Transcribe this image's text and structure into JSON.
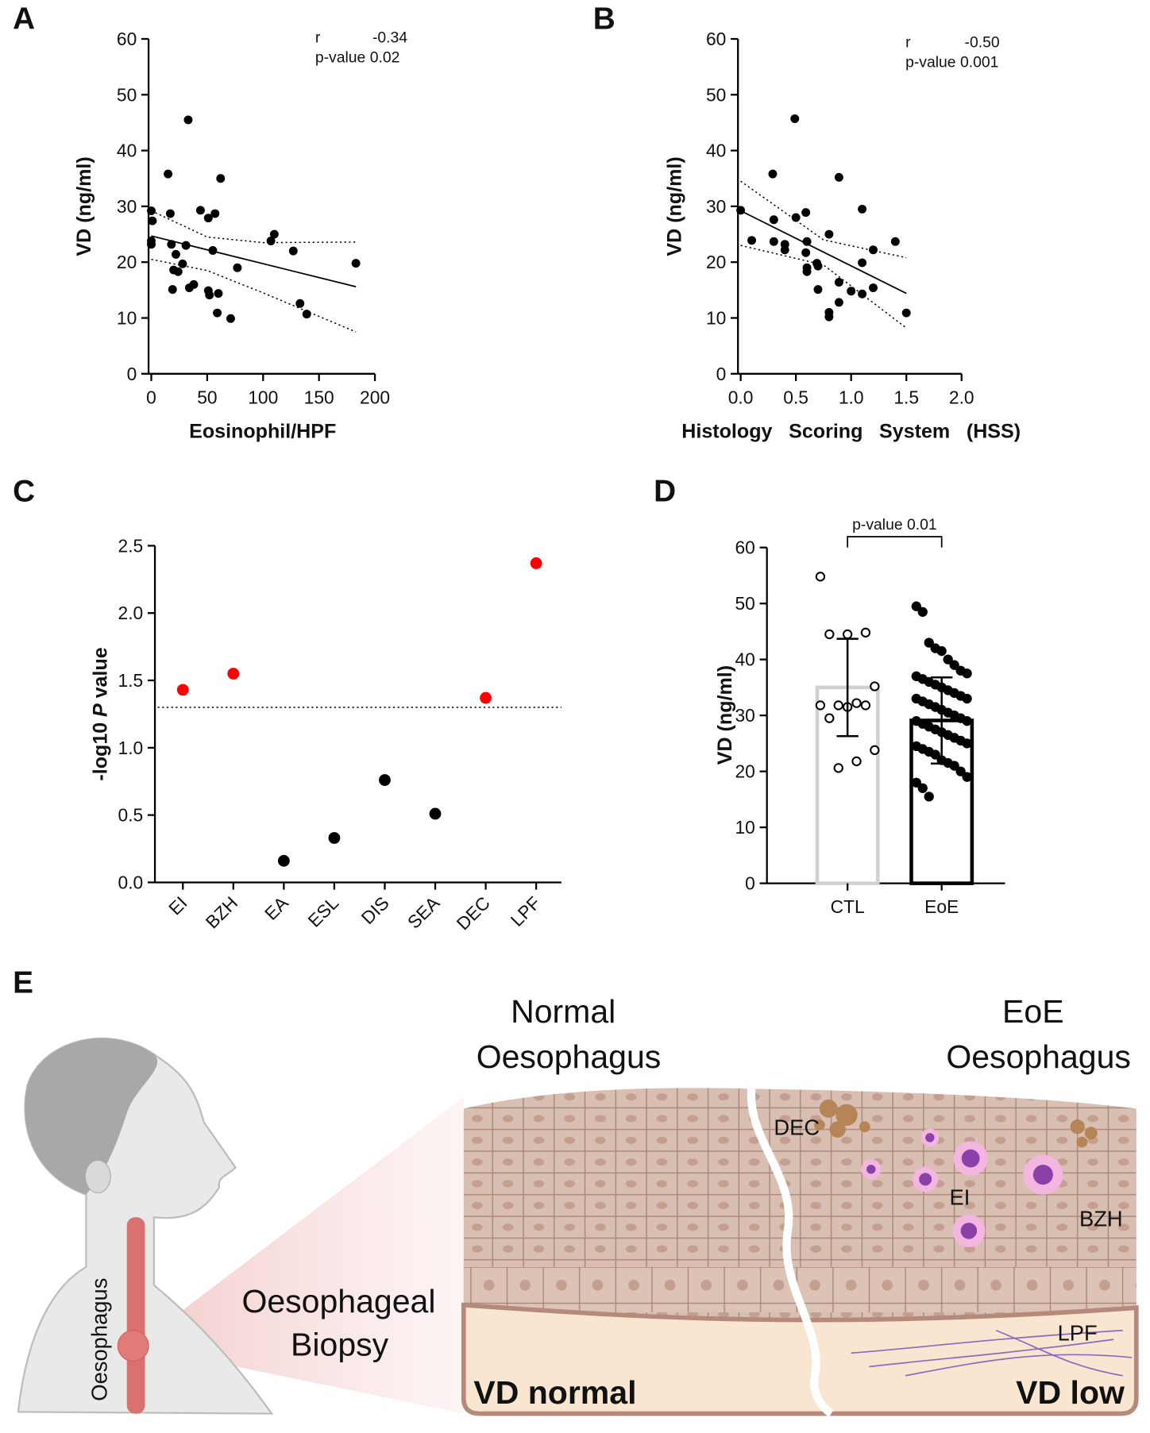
{
  "chart_data": [
    {
      "panel": "A",
      "type": "scatter",
      "x_label": "Eosinophil/HPF",
      "y_label": "VD (ng/ml)",
      "annotations": [
        "r",
        "-0.34",
        "p-value 0.02"
      ],
      "xlim": [
        0,
        200
      ],
      "xticks": [
        0,
        50,
        100,
        150,
        200
      ],
      "ylim": [
        0,
        60
      ],
      "yticks": [
        0,
        10,
        20,
        30,
        40,
        50,
        60
      ],
      "series": [
        {
          "color": "#000000",
          "x": [
            0,
            1,
            0,
            0,
            33,
            15,
            17,
            18,
            22,
            20,
            24,
            19,
            28,
            31,
            34,
            38,
            44,
            51,
            57,
            55,
            51,
            52,
            60,
            59,
            62,
            71,
            77,
            107,
            110,
            127,
            133,
            139,
            183
          ],
          "values": [
            29.2,
            27.4,
            23.8,
            23.2,
            45.5,
            35.8,
            28.7,
            23.2,
            21.4,
            18.6,
            18.3,
            15.1,
            19.7,
            23.0,
            15.4,
            16.0,
            29.3,
            27.9,
            28.7,
            22.1,
            14.9,
            14.1,
            14.4,
            10.9,
            35.0,
            9.9,
            19.0,
            23.8,
            25.0,
            22.0,
            12.6,
            10.7,
            19.8
          ]
        }
      ],
      "fit": {
        "x": [
          0,
          183
        ],
        "values": [
          24.7,
          15.6
        ]
      },
      "ci_upper": {
        "x": [
          0,
          50,
          100,
          183
        ],
        "values": [
          29.2,
          24.5,
          23.5,
          23.6
        ]
      },
      "ci_lower": {
        "x": [
          0,
          50,
          100,
          183
        ],
        "values": [
          20.5,
          18.5,
          14.5,
          7.5
        ]
      }
    },
    {
      "panel": "B",
      "type": "scatter",
      "x_label": "Histology Scoring System (HSS)",
      "y_label": "VD (ng/ml)",
      "annotations": [
        "r",
        "-0.50",
        "p-value 0.001"
      ],
      "xlim": [
        0,
        2
      ],
      "xticks": [
        {
          "value": 0,
          "label": "0.0"
        },
        0.5,
        {
          "value": 1,
          "label": "1.0"
        },
        1.5,
        {
          "value": 2,
          "label": "2.0"
        }
      ],
      "ylim": [
        0,
        60
      ],
      "yticks": [
        0,
        10,
        20,
        30,
        40,
        50,
        60
      ],
      "series": [
        {
          "color": "#000000",
          "x": [
            0,
            0.1,
            0.29,
            0.3,
            0.3,
            0.4,
            0.4,
            0.49,
            0.5,
            0.59,
            0.6,
            0.59,
            0.6,
            0.6,
            0.69,
            0.7,
            0.7,
            0.8,
            0.8,
            0.8,
            0.89,
            0.89,
            0.89,
            1,
            1.1,
            1.1,
            1.1,
            1.2,
            1.2,
            1.4,
            1.5
          ],
          "values": [
            29.3,
            23.9,
            35.8,
            27.6,
            23.7,
            23.2,
            22.2,
            45.7,
            28.0,
            28.9,
            23.7,
            21.7,
            19.0,
            18.3,
            19.8,
            19.3,
            15.1,
            25.0,
            11.0,
            10.2,
            35.2,
            16.4,
            12.8,
            14.8,
            29.5,
            19.9,
            14.3,
            22.2,
            15.4,
            23.7,
            10.9
          ]
        }
      ],
      "fit": {
        "x": [
          0,
          1.5
        ],
        "values": [
          29.2,
          14.4
        ]
      },
      "ci_upper": {
        "x": [
          0,
          0.75,
          1.5
        ],
        "values": [
          34.5,
          24.0,
          20.8
        ]
      },
      "ci_lower": {
        "x": [
          0,
          0.75,
          1.5
        ],
        "values": [
          23.0,
          19.5,
          8.2
        ]
      }
    },
    {
      "panel": "C",
      "type": "dot",
      "y_label_parts": [
        "-log10",
        "P",
        "value"
      ],
      "categories": [
        "EI",
        "BZH",
        "EA",
        "ESL",
        "DIS",
        "SEA",
        "DEC",
        "LPF"
      ],
      "values": [
        1.43,
        1.55,
        0.16,
        0.33,
        0.76,
        0.51,
        1.37,
        2.37
      ],
      "colors": [
        "#ff0000",
        "#ff0000",
        "#000000",
        "#000000",
        "#000000",
        "#000000",
        "#ff0000",
        "#ff0000"
      ],
      "threshold": 1.3,
      "ylim": [
        0,
        2.5
      ],
      "yticks": [
        {
          "value": 0,
          "label": "0.0"
        },
        0.5,
        {
          "value": 1,
          "label": "1.0"
        },
        1.5,
        {
          "value": 2,
          "label": "2.0"
        },
        2.5
      ]
    },
    {
      "panel": "D",
      "type": "bar",
      "y_label": "VD (ng/ml)",
      "categories": [
        "CTL",
        "EoE"
      ],
      "values": [
        35.0,
        29.1
      ],
      "errors": [
        8.7,
        7.7
      ],
      "colors": [
        "#d0d0d0",
        "#000000"
      ],
      "point_fill": [
        "#ffffff",
        "#000000"
      ],
      "bracket_label": "p-value 0.01",
      "points": [
        [
          54.8,
          44.8,
          44.5,
          44.5,
          35.2,
          32.2,
          31.8,
          31.8,
          31.8,
          31.5,
          29.5,
          23.8,
          21.8,
          20.6
        ],
        [
          49.5,
          48.5,
          43,
          42,
          41.5,
          40,
          39,
          38,
          37.5,
          37,
          36.5,
          36,
          35.5,
          35,
          34.5,
          34,
          33.5,
          33,
          33,
          32.5,
          32,
          31.5,
          31,
          30.5,
          30,
          29.5,
          29,
          29,
          28.5,
          28,
          27.5,
          27,
          26.5,
          26,
          25.5,
          25,
          24.5,
          24,
          23.5,
          23,
          22,
          21.5,
          21,
          20,
          19,
          18,
          17,
          15.5
        ]
      ],
      "ylim": [
        0,
        60
      ],
      "yticks": [
        0,
        10,
        20,
        30,
        40,
        50,
        60
      ]
    }
  ],
  "diagram": {
    "panel": "E",
    "normal_title": [
      "Normal",
      "Oesophagus"
    ],
    "eoe_title": [
      "EoE",
      "Oesophagus"
    ],
    "biopsy": [
      "Oesophageal",
      "Biopsy"
    ],
    "organ": "Oesophagus",
    "labels": {
      "dec": "DEC",
      "ei": "EI",
      "bzh": "BZH",
      "lpf": "LPF"
    },
    "vd_normal": "VD normal",
    "vd_low": "VD low"
  }
}
